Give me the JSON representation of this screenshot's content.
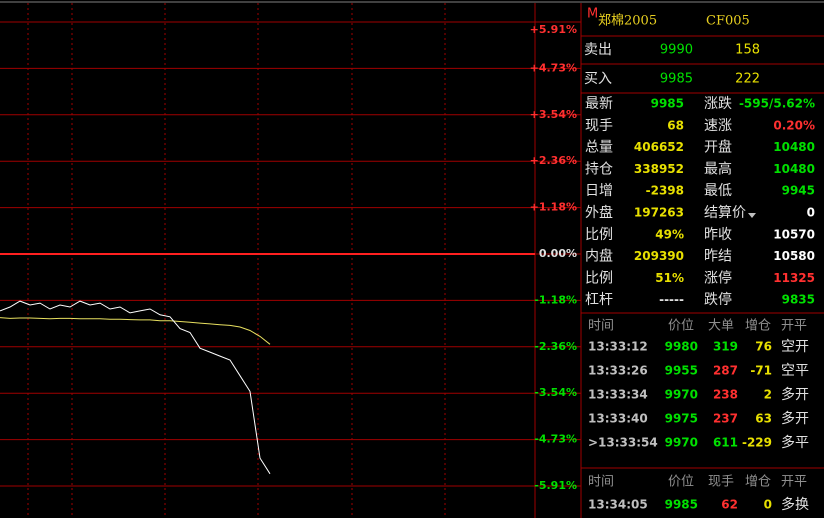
{
  "chart": {
    "ylim": [
      -5.91,
      5.91
    ],
    "axis_labels": [
      "+5.91%",
      "+4.73%",
      "+3.54%",
      "+2.36%",
      "+1.18%",
      "0.00%",
      "-1.18%",
      "-2.36%",
      "-3.54%",
      "-4.73%",
      "-5.91%"
    ],
    "axis_colors": [
      "#ff3030",
      "#ff3030",
      "#ff3030",
      "#ff3030",
      "#ff3030",
      "#e0e0e0",
      "#00e000",
      "#00e000",
      "#00e000",
      "#00e000",
      "#00e000"
    ],
    "price_color": "#ffffff",
    "average_color": "#e8e060",
    "price_pct": [
      -1.45,
      -1.35,
      -1.2,
      -1.3,
      -1.25,
      -1.4,
      -1.3,
      -1.35,
      -1.2,
      -1.3,
      -1.25,
      -1.4,
      -1.35,
      -1.5,
      -1.45,
      -1.4,
      -1.55,
      -1.6,
      -1.9,
      -2.0,
      -2.4,
      -2.5,
      -2.6,
      -2.7,
      -3.1,
      -3.5,
      -5.2,
      -5.6
    ],
    "average_pct": [
      -1.62,
      -1.64,
      -1.63,
      -1.63,
      -1.64,
      -1.65,
      -1.64,
      -1.64,
      -1.65,
      -1.65,
      -1.65,
      -1.66,
      -1.66,
      -1.67,
      -1.68,
      -1.68,
      -1.7,
      -1.7,
      -1.72,
      -1.74,
      -1.76,
      -1.78,
      -1.8,
      -1.82,
      -1.86,
      -1.95,
      -2.1,
      -2.3
    ]
  },
  "header": {
    "mark": "M",
    "title": "郑棉2005",
    "code": "CF005"
  },
  "quotes": [
    {
      "label": "卖出",
      "price": "9990",
      "volume": "158"
    },
    {
      "label": "买入",
      "price": "9985",
      "volume": "222"
    }
  ],
  "stats": [
    [
      {
        "label": "最新",
        "value": "9985",
        "color": "#00e000"
      },
      {
        "label": "涨跌",
        "value": "-595/5.62%",
        "color": "#00e000"
      }
    ],
    [
      {
        "label": "现手",
        "value": "68",
        "color": "#e8e000"
      },
      {
        "label": "速涨",
        "value": "0.20%",
        "color": "#ff3030"
      }
    ],
    [
      {
        "label": "总量",
        "value": "406652",
        "color": "#e8e000"
      },
      {
        "label": "开盘",
        "value": "10480",
        "color": "#00e000"
      }
    ],
    [
      {
        "label": "持仓",
        "value": "338952",
        "color": "#e8e000"
      },
      {
        "label": "最高",
        "value": "10480",
        "color": "#00e000"
      }
    ],
    [
      {
        "label": "日增",
        "value": "-2398",
        "color": "#e8e000"
      },
      {
        "label": "最低",
        "value": "9945",
        "color": "#00e000"
      }
    ],
    [
      {
        "label": "外盘",
        "value": "197263",
        "color": "#e8e000"
      },
      {
        "label": "结算价",
        "value": "0",
        "color": "#ffffff"
      }
    ],
    [
      {
        "label": "比例",
        "value": "49%",
        "color": "#e8e000"
      },
      {
        "label": "昨收",
        "value": "10570",
        "color": "#ffffff"
      }
    ],
    [
      {
        "label": "内盘",
        "value": "209390",
        "color": "#e8e000"
      },
      {
        "label": "昨结",
        "value": "10580",
        "color": "#ffffff"
      }
    ],
    [
      {
        "label": "比例",
        "value": "51%",
        "color": "#e8e000"
      },
      {
        "label": "涨停",
        "value": "11325",
        "color": "#ff3030"
      }
    ],
    [
      {
        "label": "杠杆",
        "value": "-----",
        "color": "#e0e0e0"
      },
      {
        "label": "跌停",
        "value": "9835",
        "color": "#00e000"
      }
    ]
  ],
  "trades": {
    "headers": [
      "时间",
      "价位",
      "大单",
      "增仓",
      "开平"
    ],
    "rows": [
      [
        "13:33:12",
        "9980",
        "319",
        "76",
        "空开"
      ],
      [
        "13:33:26",
        "9955",
        "287",
        "-71",
        "空平"
      ],
      [
        "13:33:34",
        "9970",
        "238",
        "2",
        "多开"
      ],
      [
        "13:33:40",
        "9975",
        "237",
        "63",
        "多开"
      ],
      [
        ">13:33:54",
        "9970",
        "611",
        "-229",
        "多平"
      ]
    ],
    "colors": [
      [
        "#c0c0c0",
        "#00e000",
        "#00e000",
        "#e8e000",
        "#e0e0e0"
      ],
      [
        "#c0c0c0",
        "#00e000",
        "#ff3030",
        "#e8e000",
        "#e0e0e0"
      ],
      [
        "#c0c0c0",
        "#00e000",
        "#ff3030",
        "#e8e000",
        "#e0e0e0"
      ],
      [
        "#c0c0c0",
        "#00e000",
        "#ff3030",
        "#e8e000",
        "#e0e0e0"
      ],
      [
        "#c0c0c0",
        "#00e000",
        "#00e000",
        "#e8e000",
        "#e0e0e0"
      ]
    ]
  },
  "ticks": {
    "headers": [
      "时间",
      "价位",
      "现手",
      "增仓",
      "开平"
    ],
    "rows": [
      [
        "13:34:05",
        "9985",
        "62",
        "0",
        "多换"
      ]
    ],
    "colors": [
      [
        "#c0c0c0",
        "#00e000",
        "#ff3030",
        "#e8e000",
        "#e0e0e0"
      ]
    ]
  }
}
